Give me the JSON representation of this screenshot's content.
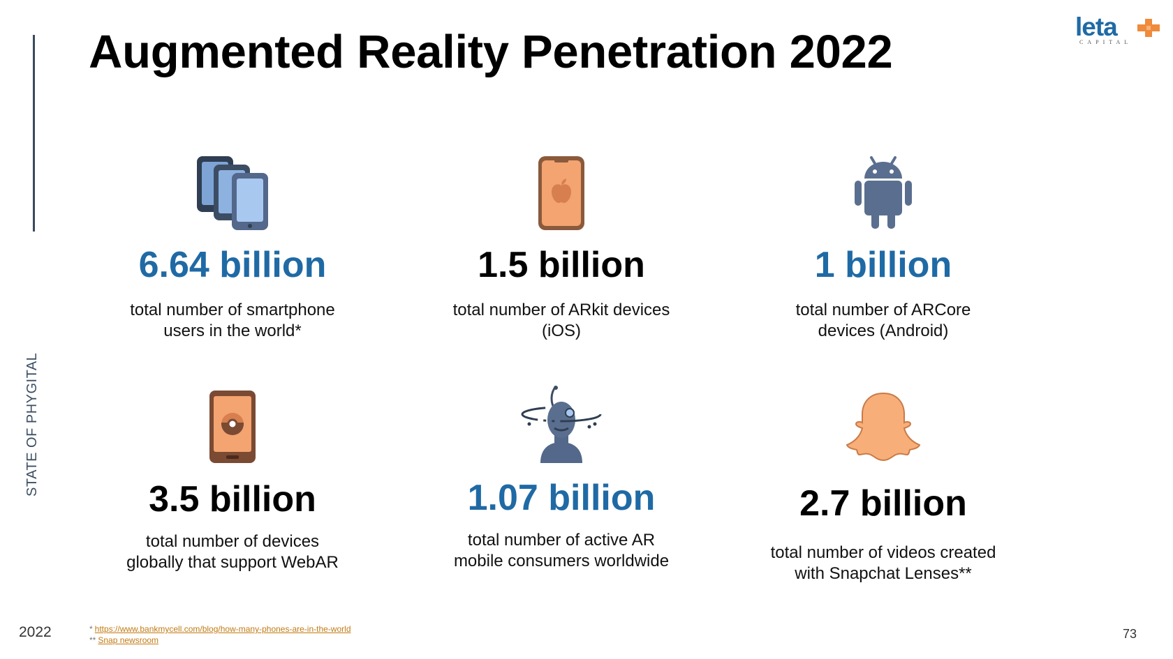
{
  "slide": {
    "title": "Augmented Reality Penetration 2022",
    "side_label": "STATE OF PHYGITAL",
    "year": "2022",
    "page_number": "73"
  },
  "logo": {
    "word": "leta",
    "sub": "CAPITAL",
    "colors": {
      "word": "#1f6aa5",
      "cross": "#f08a3c"
    }
  },
  "stats": [
    {
      "icon": "smartphones-icon",
      "value": "6.64 billion",
      "desc": "total number of  smartphone\nusers in the world*",
      "value_color": "#1f6aa5"
    },
    {
      "icon": "iphone-apple-icon",
      "value": "1.5 billion",
      "desc": "total number of ARkit devices\n(iOS)",
      "value_color": "#000000"
    },
    {
      "icon": "android-icon",
      "value": "1 billion",
      "desc": "total number of ARCore\ndevices (Android)",
      "value_color": "#1f6aa5"
    },
    {
      "icon": "phone-pokeball-icon",
      "value": "3.5 billion",
      "desc": "total number of devices\nglobally that support WebAR",
      "value_color": "#000000"
    },
    {
      "icon": "ar-user-headset-icon",
      "value": "1.07 billion",
      "desc": "total number of active AR\nmobile consumers worldwide",
      "value_color": "#1f6aa5"
    },
    {
      "icon": "snapchat-ghost-icon",
      "value": "2.7 billion",
      "desc": "total number of videos created\nwith Snapchat Lenses**",
      "value_color": "#000000"
    }
  ],
  "sources": {
    "note1_marker": "*",
    "note1_link": "https://www.bankmycell.com/blog/how-many-phones-are-in-the-world",
    "note2_marker": "**",
    "note2_link": "Snap newsroom"
  }
}
